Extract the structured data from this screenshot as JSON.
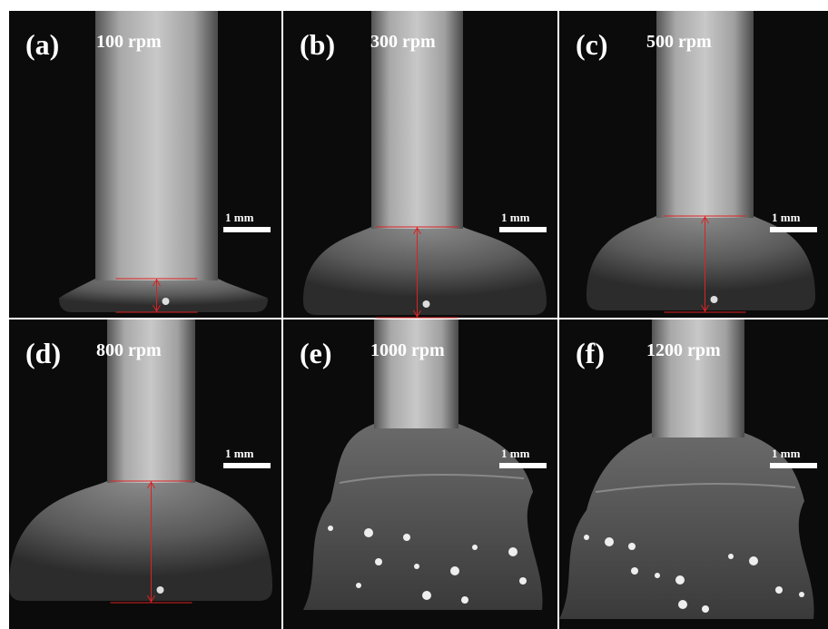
{
  "panels": [
    {
      "label": "(a)",
      "speed": "100 rpm",
      "scale": "1 mm"
    },
    {
      "label": "(b)",
      "speed": "300 rpm",
      "scale": "1 mm"
    },
    {
      "label": "(c)",
      "speed": "500 rpm",
      "scale": "1 mm"
    },
    {
      "label": "(d)",
      "speed": "800 rpm",
      "scale": "1 mm"
    },
    {
      "label": "(e)",
      "speed": "1000 rpm",
      "scale": "1 mm"
    },
    {
      "label": "(f)",
      "speed": "1200 rpm",
      "scale": "1 mm"
    }
  ]
}
